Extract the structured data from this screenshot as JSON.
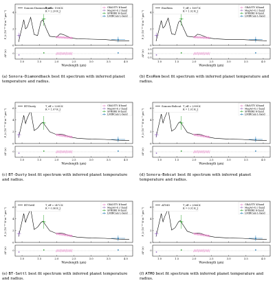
{
  "figure": {
    "common": {
      "ylabel_main": "F_λ (10⁻¹⁶ W m⁻² μm⁻¹)",
      "ylabel_resid": "ΔF (σ)",
      "xlabel": "Wavelength (μm)",
      "x_ticks": [
        "1.0",
        "1.5",
        "2.0",
        "2.5",
        "3.0",
        "3.5",
        "4.0"
      ],
      "legend": [
        "GRAVITY K-band",
        "MagAO-X z'-band",
        "SPHERE H-band",
        "LMIRCam L-band"
      ],
      "colors": {
        "model": "#000000",
        "gravity": "#e377c2",
        "magaox": "#9467bd",
        "sphere": "#2ca02c",
        "lmircam": "#1f77b4"
      }
    },
    "panels": [
      {
        "label": "(a)",
        "model": "Sonora-Diamondback",
        "teff": "T_eff = 1506 K",
        "radius": "R = 2.20 R_J",
        "caption_pre": "(a) ",
        "caption_model": "Sonora-Diamondback",
        "caption_post": " best fit spectrum with inferred planet temperature and radius.",
        "yticks": [
          "0",
          "2",
          "4"
        ],
        "rticks": [
          "0"
        ]
      },
      {
        "label": "(b)",
        "model": "ExoRem",
        "teff": "T_eff = 1697 K",
        "radius": "R = 1.92 R_J",
        "caption_pre": "(b) ",
        "caption_model": "ExoRem",
        "caption_post": " best fit spectrum with inferred planet temperature and radius.",
        "yticks": [
          "0",
          "2",
          "4"
        ],
        "rticks": [
          "-2.5",
          "0.0",
          "2.5"
        ]
      },
      {
        "label": "(c)",
        "model": "BT-Dusty",
        "teff": "T_eff = 2285 K",
        "radius": "R = 1.07 R_J",
        "caption_pre": "(c) ",
        "caption_model": "BT-Dusty",
        "caption_post": " best fit spectrum with inferred planet temperature and radius.",
        "yticks": [
          "0",
          "2",
          "4",
          "6"
        ],
        "rticks": [
          "0"
        ]
      },
      {
        "label": "(d)",
        "model": "Sonora-Bobcat",
        "teff": "T_eff = 2399 K",
        "radius": "R = 1.01 R_J",
        "caption_pre": "(d) ",
        "caption_model": "Sonora-Bobcat",
        "caption_post": " best fit spectrum with inferred planet temperature and radius.",
        "yticks": [
          "0",
          "2",
          "4",
          "6"
        ],
        "rticks": [
          "0"
        ]
      },
      {
        "label": "(e)",
        "model": "BT-Settl",
        "teff": "T_eff = 2472 K",
        "radius": "R = 0.96 R_J",
        "caption_pre": "(e) ",
        "caption_model": "BT-Settl",
        "caption_post": " best fit spectrum with inferred planet temperature and radius.",
        "yticks": [
          "0",
          "2",
          "4",
          "6"
        ],
        "rticks": [
          "0"
        ]
      },
      {
        "label": "(f)",
        "model": "ATMO",
        "teff": "T_eff = 2566 K",
        "radius": "R = 0.91 R_J",
        "caption_pre": "(f) ",
        "caption_model": "ATMO",
        "caption_post": " best fit spectrum with inferred planet temperature and radius.",
        "yticks": [
          "0",
          "2",
          "4",
          "6"
        ],
        "rticks": [
          "0"
        ]
      }
    ]
  },
  "chart_data": [
    {
      "type": "line",
      "title": "",
      "xlabel": "Wavelength (μm)",
      "ylabel": "F_λ (10⁻¹⁶ W m⁻² μm⁻¹)",
      "xlim": [
        0.8,
        4.2
      ],
      "ylim": [
        0,
        5
      ],
      "series": [
        {
          "name": "Sonora-Diamondback",
          "x": [
            0.9,
            1.05,
            1.1,
            1.15,
            1.25,
            1.35,
            1.45,
            1.55,
            1.6,
            1.7,
            1.8,
            2.0,
            2.1,
            2.2,
            2.4,
            2.6,
            3.0,
            3.4,
            3.8,
            4.1
          ],
          "y": [
            0.4,
            3.1,
            2.0,
            2.2,
            3.4,
            1.3,
            1.2,
            2.9,
            3.1,
            2.0,
            1.1,
            1.0,
            1.4,
            1.3,
            0.9,
            0.8,
            0.75,
            0.7,
            0.55,
            0.55
          ]
        }
      ],
      "points": [
        {
          "name": "MagAO-X z'-band",
          "x": 0.91,
          "y": 1.2
        },
        {
          "name": "SPHERE H-band",
          "x": 1.63,
          "y": 3.2
        },
        {
          "name": "LMIRCam L-band",
          "x": 3.78,
          "y": 0.7
        }
      ]
    },
    {
      "type": "line",
      "title": "",
      "xlabel": "Wavelength (μm)",
      "ylabel": "F_λ (10⁻¹⁶ W m⁻² μm⁻¹)",
      "xlim": [
        0.8,
        4.2
      ],
      "ylim": [
        0,
        5
      ],
      "series": [
        {
          "name": "ExoRem",
          "x": [
            0.9,
            1.05,
            1.1,
            1.15,
            1.25,
            1.35,
            1.45,
            1.55,
            1.6,
            1.7,
            1.8,
            2.0,
            2.1,
            2.2,
            2.4,
            2.6,
            3.0,
            3.4,
            3.8,
            4.1
          ],
          "y": [
            0.5,
            3.0,
            2.1,
            2.3,
            3.3,
            1.4,
            1.3,
            2.8,
            3.0,
            2.0,
            1.1,
            1.0,
            1.35,
            1.25,
            0.9,
            0.8,
            0.7,
            0.7,
            0.6,
            0.55
          ]
        }
      ],
      "points": [
        {
          "name": "MagAO-X z'-band",
          "x": 0.91,
          "y": 1.2
        },
        {
          "name": "SPHERE H-band",
          "x": 1.63,
          "y": 3.2
        },
        {
          "name": "LMIRCam L-band",
          "x": 3.78,
          "y": 0.7
        }
      ]
    },
    {
      "type": "line",
      "title": "",
      "xlabel": "Wavelength (μm)",
      "ylabel": "F_λ (10⁻¹⁶ W m⁻² μm⁻¹)",
      "xlim": [
        0.8,
        4.2
      ],
      "ylim": [
        0,
        7
      ],
      "series": [
        {
          "name": "BT-Dusty",
          "x": [
            0.9,
            1.05,
            1.1,
            1.15,
            1.25,
            1.35,
            1.45,
            1.55,
            1.6,
            1.7,
            1.8,
            2.0,
            2.1,
            2.2,
            2.4,
            2.6,
            3.0,
            3.4,
            3.8,
            4.1
          ],
          "y": [
            1.0,
            4.8,
            3.4,
            4.3,
            5.6,
            2.2,
            2.6,
            3.4,
            3.6,
            2.8,
            2.0,
            1.5,
            1.6,
            1.5,
            1.1,
            0.9,
            0.75,
            0.7,
            0.55,
            0.5
          ]
        }
      ],
      "points": [
        {
          "name": "MagAO-X z'-band",
          "x": 0.91,
          "y": 1.5
        },
        {
          "name": "SPHERE H-band",
          "x": 1.63,
          "y": 3.5
        },
        {
          "name": "LMIRCam L-band",
          "x": 3.78,
          "y": 0.7
        }
      ]
    },
    {
      "type": "line",
      "title": "",
      "xlabel": "Wavelength (μm)",
      "ylabel": "F_λ (10⁻¹⁶ W m⁻² μm⁻¹)",
      "xlim": [
        0.8,
        4.2
      ],
      "ylim": [
        0,
        7
      ],
      "series": [
        {
          "name": "Sonora-Bobcat",
          "x": [
            0.9,
            1.05,
            1.1,
            1.15,
            1.25,
            1.35,
            1.45,
            1.55,
            1.6,
            1.7,
            1.8,
            2.0,
            2.1,
            2.2,
            2.4,
            2.6,
            3.0,
            3.4,
            3.8,
            4.1
          ],
          "y": [
            1.1,
            5.0,
            3.5,
            4.4,
            5.8,
            2.1,
            2.5,
            3.5,
            3.7,
            2.8,
            1.9,
            1.5,
            1.6,
            1.5,
            1.1,
            0.9,
            0.75,
            0.7,
            0.55,
            0.5
          ]
        }
      ],
      "points": [
        {
          "name": "MagAO-X z'-band",
          "x": 0.91,
          "y": 1.5
        },
        {
          "name": "SPHERE H-band",
          "x": 1.63,
          "y": 3.5
        },
        {
          "name": "LMIRCam L-band",
          "x": 3.78,
          "y": 0.7
        }
      ]
    },
    {
      "type": "line",
      "title": "",
      "xlabel": "Wavelength (μm)",
      "ylabel": "F_λ (10⁻¹⁶ W m⁻² μm⁻¹)",
      "xlim": [
        0.8,
        4.2
      ],
      "ylim": [
        0,
        7
      ],
      "series": [
        {
          "name": "BT-Settl",
          "x": [
            0.9,
            1.05,
            1.1,
            1.15,
            1.25,
            1.35,
            1.45,
            1.55,
            1.6,
            1.7,
            1.8,
            2.0,
            2.1,
            2.2,
            2.4,
            2.6,
            3.0,
            3.4,
            3.8,
            4.1
          ],
          "y": [
            1.0,
            4.9,
            3.4,
            4.3,
            5.7,
            2.2,
            2.6,
            3.4,
            3.6,
            2.8,
            2.0,
            1.5,
            1.6,
            1.5,
            1.1,
            0.9,
            0.75,
            0.7,
            0.55,
            0.5
          ]
        }
      ],
      "points": [
        {
          "name": "MagAO-X z'-band",
          "x": 0.91,
          "y": 1.5
        },
        {
          "name": "SPHERE H-band",
          "x": 1.63,
          "y": 3.5
        },
        {
          "name": "LMIRCam L-band",
          "x": 3.78,
          "y": 0.7
        }
      ]
    },
    {
      "type": "line",
      "title": "",
      "xlabel": "Wavelength (μm)",
      "ylabel": "F_λ (10⁻¹⁶ W m⁻² μm⁻¹)",
      "xlim": [
        0.8,
        4.2
      ],
      "ylim": [
        0,
        7
      ],
      "series": [
        {
          "name": "ATMO",
          "x": [
            0.9,
            1.05,
            1.1,
            1.15,
            1.25,
            1.35,
            1.45,
            1.55,
            1.6,
            1.7,
            1.8,
            2.0,
            2.1,
            2.2,
            2.4,
            2.6,
            3.0,
            3.4,
            3.8,
            4.1
          ],
          "y": [
            1.0,
            4.9,
            3.5,
            4.4,
            5.7,
            2.1,
            2.5,
            3.5,
            3.7,
            2.8,
            1.9,
            1.5,
            1.6,
            1.5,
            1.1,
            0.9,
            0.75,
            0.7,
            0.55,
            0.5
          ]
        }
      ],
      "points": [
        {
          "name": "MagAO-X z'-band",
          "x": 0.91,
          "y": 1.5
        },
        {
          "name": "SPHERE H-band",
          "x": 1.63,
          "y": 3.5
        },
        {
          "name": "LMIRCam L-band",
          "x": 3.78,
          "y": 0.7
        }
      ]
    }
  ]
}
